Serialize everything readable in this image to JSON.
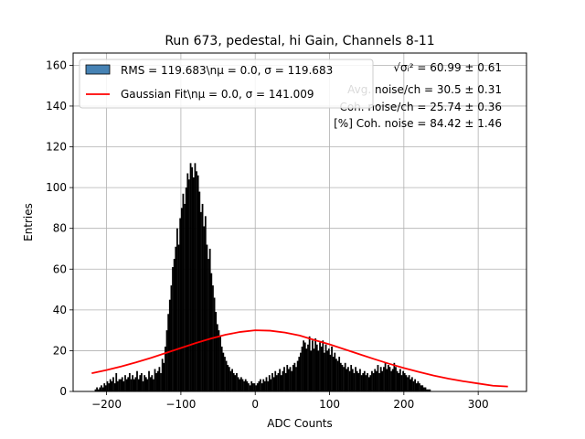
{
  "chart_data": {
    "type": "bar",
    "title": "Run 673, pedestal, hi Gain, Channels 8-11",
    "xlabel": "ADC Counts",
    "ylabel": "Entries",
    "xlim": [
      -245,
      365
    ],
    "ylim": [
      0,
      166
    ],
    "xticks": [
      -200,
      -100,
      0,
      100,
      200,
      300
    ],
    "yticks": [
      0,
      20,
      40,
      60,
      80,
      100,
      120,
      140,
      160
    ],
    "grid": true,
    "legend_placement": "top-left",
    "series": [
      {
        "name": "RMS = 119.683\\n$\\mu$ = 0.0, $\\sigma$ = 119.683",
        "legend_label": "RMS = 119.683\\nμ = 0.0, σ = 119.683",
        "type": "histogram",
        "color": "#000000",
        "legend_color": "#4682b4",
        "bin_start": -220,
        "bin_width": 2,
        "values": [
          0,
          0,
          1,
          2,
          1,
          2,
          3,
          2,
          4,
          3,
          5,
          4,
          6,
          5,
          7,
          4,
          9,
          5,
          6,
          6,
          7,
          5,
          8,
          6,
          7,
          9,
          6,
          8,
          6,
          7,
          10,
          6,
          8,
          9,
          5,
          8,
          7,
          6,
          10,
          7,
          8,
          6,
          11,
          9,
          10,
          12,
          9,
          16,
          14,
          22,
          30,
          38,
          45,
          52,
          61,
          65,
          71,
          80,
          72,
          85,
          90,
          97,
          92,
          100,
          107,
          104,
          112,
          110,
          105,
          112,
          108,
          106,
          98,
          88,
          92,
          81,
          86,
          72,
          65,
          70,
          58,
          52,
          46,
          39,
          33,
          30,
          27,
          22,
          19,
          17,
          15,
          13,
          12,
          10,
          11,
          9,
          8,
          9,
          7,
          6,
          7,
          6,
          5,
          6,
          5,
          4,
          3,
          5,
          4,
          4,
          3,
          4,
          5,
          6,
          4,
          6,
          5,
          7,
          5,
          8,
          6,
          9,
          7,
          10,
          8,
          9,
          11,
          8,
          10,
          12,
          9,
          13,
          11,
          12,
          10,
          13,
          14,
          12,
          15,
          17,
          19,
          22,
          25,
          24,
          21,
          23,
          27,
          20,
          25,
          21,
          26,
          23,
          20,
          24,
          22,
          25,
          19,
          23,
          20,
          21,
          18,
          22,
          17,
          19,
          16,
          15,
          17,
          14,
          13,
          12,
          14,
          11,
          12,
          10,
          13,
          11,
          9,
          12,
          10,
          9,
          11,
          8,
          9,
          10,
          8,
          9,
          7,
          8,
          10,
          9,
          11,
          10,
          13,
          9,
          12,
          10,
          12,
          14,
          11,
          13,
          12,
          10,
          11,
          14,
          12,
          10,
          9,
          11,
          8,
          10,
          9,
          8,
          7,
          8,
          6,
          7,
          5,
          6,
          4,
          5,
          4,
          3,
          3,
          2,
          2,
          1,
          1,
          1
        ]
      },
      {
        "name": "Gaussian Fit\\n$\\mu$ = 0.0, $\\sigma$ = 141.009",
        "legend_label": "Gaussian Fit\\nμ = 0.0, σ = 141.009",
        "type": "line",
        "color": "#ff0000",
        "x": [
          -220,
          -200,
          -180,
          -160,
          -140,
          -120,
          -100,
          -80,
          -60,
          -40,
          -20,
          0,
          20,
          40,
          60,
          80,
          100,
          120,
          140,
          160,
          180,
          200,
          220,
          240,
          260,
          280,
          300,
          320,
          340
        ],
        "y": [
          8.9,
          10.5,
          12.3,
          14.3,
          16.5,
          18.9,
          21.3,
          23.7,
          25.9,
          27.8,
          29.2,
          30.0,
          29.8,
          28.9,
          27.4,
          25.2,
          23.1,
          20.7,
          18.3,
          15.9,
          13.6,
          11.5,
          9.6,
          7.8,
          6.3,
          5.0,
          3.9,
          2.8,
          2.4
        ]
      }
    ],
    "annotations": [
      "$\\sqrt{\\sigma_i^2}$ = 60.99 ± 0.61",
      "Avg. noise/ch = 30.5 ± 0.31",
      "Coh. noise/ch = 25.74 ± 0.36",
      "[%] Coh. noise = 84.42 ± 1.46"
    ],
    "annotation_display": [
      "√σᵢ² = 60.99 ± 0.61",
      "Avg. noise/ch = 30.5 ± 0.31",
      "Coh. noise/ch = 25.74 ± 0.36",
      "[%] Coh. noise = 84.42 ± 1.46"
    ]
  }
}
